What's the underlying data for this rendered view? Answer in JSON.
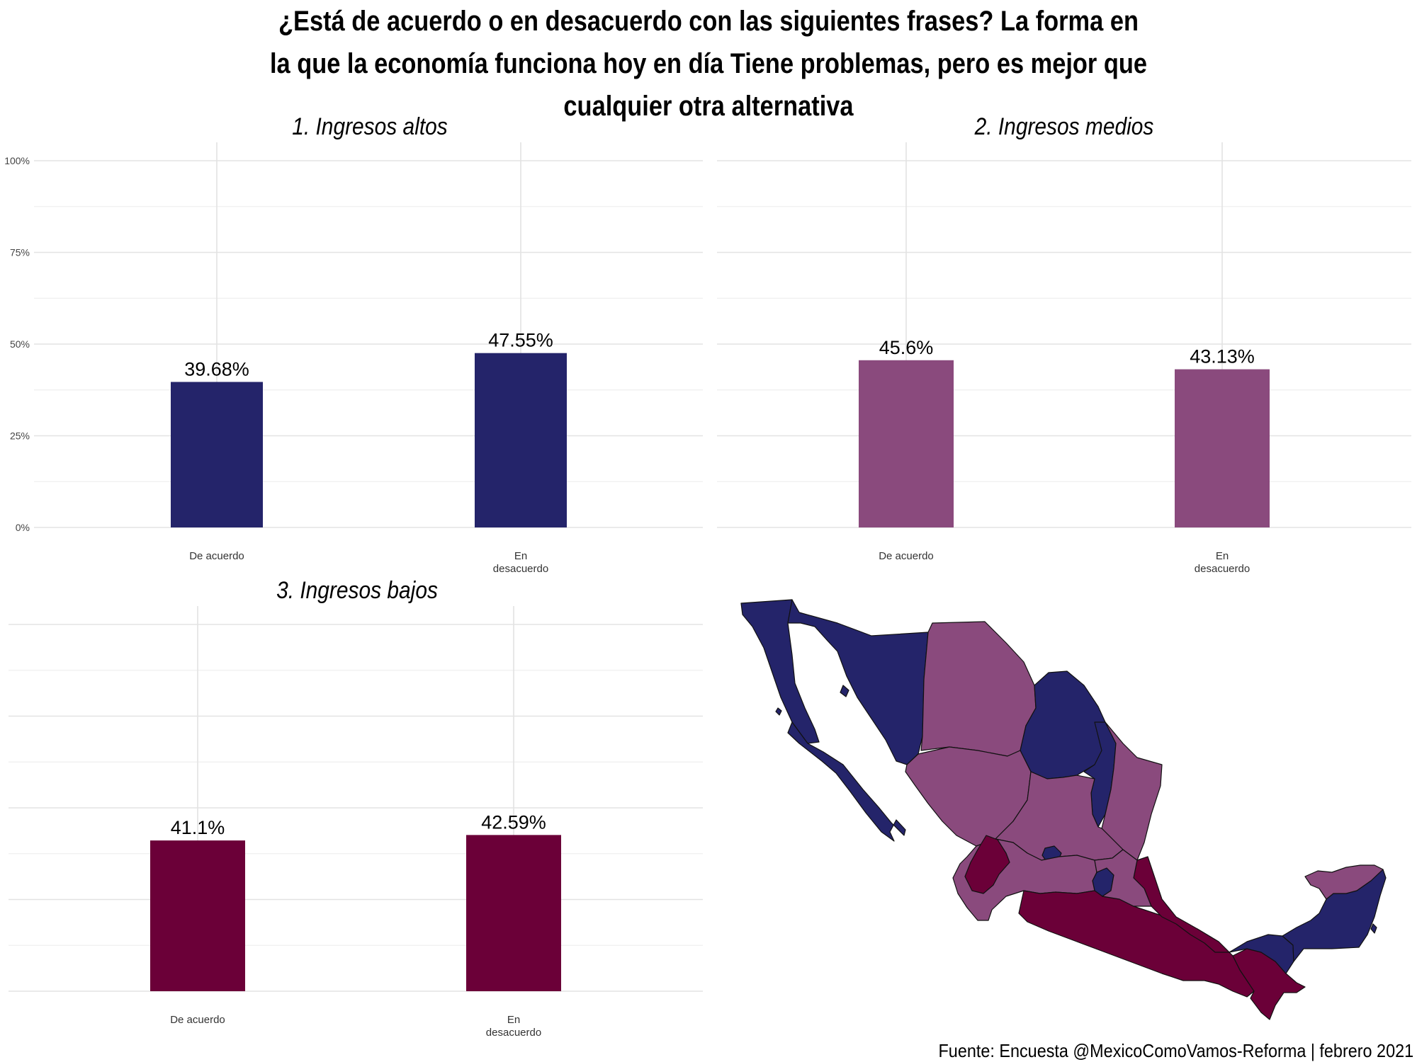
{
  "title": "¿Está de acuerdo o en desacuerdo con las siguientes frases? La forma en la que la economía funciona hoy en día Tiene problemas, pero es mejor que cualquier otra alternativa",
  "title_lines": [
    "¿Está de acuerdo o en desacuerdo con las siguientes frases? La forma en",
    "la que la economía funciona hoy en día Tiene problemas, pero es mejor que",
    "cualquier otra alternativa"
  ],
  "source": "Fuente: Encuesta @MexicoComoVamos-Reforma | febrero 2021",
  "colors": {
    "altos": "#24246a",
    "medios": "#8a4a7d",
    "bajos": "#6b0038"
  },
  "chart_data": [
    {
      "type": "bar",
      "title": "1. Ingresos altos",
      "categories": [
        "De acuerdo",
        "En desacuerdo"
      ],
      "category_lines": [
        [
          "De acuerdo"
        ],
        [
          "En",
          "desacuerdo"
        ]
      ],
      "values": [
        39.68,
        47.55
      ],
      "labels": [
        "39.68%",
        "47.55%"
      ],
      "ylim": [
        0,
        100
      ],
      "yticks": [
        "0%",
        "25%",
        "50%",
        "75%",
        "100%"
      ],
      "color": "#24246a",
      "grid": true
    },
    {
      "type": "bar",
      "title": "2. Ingresos medios",
      "categories": [
        "De acuerdo",
        "En desacuerdo"
      ],
      "category_lines": [
        [
          "De acuerdo"
        ],
        [
          "En",
          "desacuerdo"
        ]
      ],
      "values": [
        45.6,
        43.13
      ],
      "labels": [
        "45.6%",
        "43.13%"
      ],
      "ylim": [
        0,
        100
      ],
      "color": "#8a4a7d",
      "grid": true
    },
    {
      "type": "bar",
      "title": "3. Ingresos bajos",
      "categories": [
        "De acuerdo",
        "En desacuerdo"
      ],
      "category_lines": [
        [
          "De acuerdo"
        ],
        [
          "En",
          "desacuerdo"
        ]
      ],
      "values": [
        41.1,
        42.59
      ],
      "labels": [
        "41.1%",
        "42.59%"
      ],
      "ylim": [
        0,
        100
      ],
      "color": "#6b0038",
      "grid": true
    }
  ],
  "map": {
    "regions": [
      {
        "name": "baja-california",
        "group": "altos"
      },
      {
        "name": "baja-california-sur",
        "group": "altos"
      },
      {
        "name": "sonora",
        "group": "altos"
      },
      {
        "name": "chihuahua",
        "group": "medios"
      },
      {
        "name": "coahuila",
        "group": "altos"
      },
      {
        "name": "nuevo-leon",
        "group": "altos"
      },
      {
        "name": "tamaulipas",
        "group": "medios"
      },
      {
        "name": "sinaloa-durango-norte",
        "group": "medios"
      },
      {
        "name": "centro-norte",
        "group": "medios"
      },
      {
        "name": "aguascalientes",
        "group": "altos"
      },
      {
        "name": "queretaro",
        "group": "altos"
      },
      {
        "name": "jalisco",
        "group": "medios"
      },
      {
        "name": "nayarit",
        "group": "bajos"
      },
      {
        "name": "sur-pacifico",
        "group": "bajos"
      },
      {
        "name": "veracruz",
        "group": "bajos"
      },
      {
        "name": "centro",
        "group": "medios"
      },
      {
        "name": "chiapas",
        "group": "bajos"
      },
      {
        "name": "tabasco",
        "group": "altos"
      },
      {
        "name": "campeche-qroo",
        "group": "altos"
      },
      {
        "name": "yucatan",
        "group": "medios"
      }
    ]
  }
}
